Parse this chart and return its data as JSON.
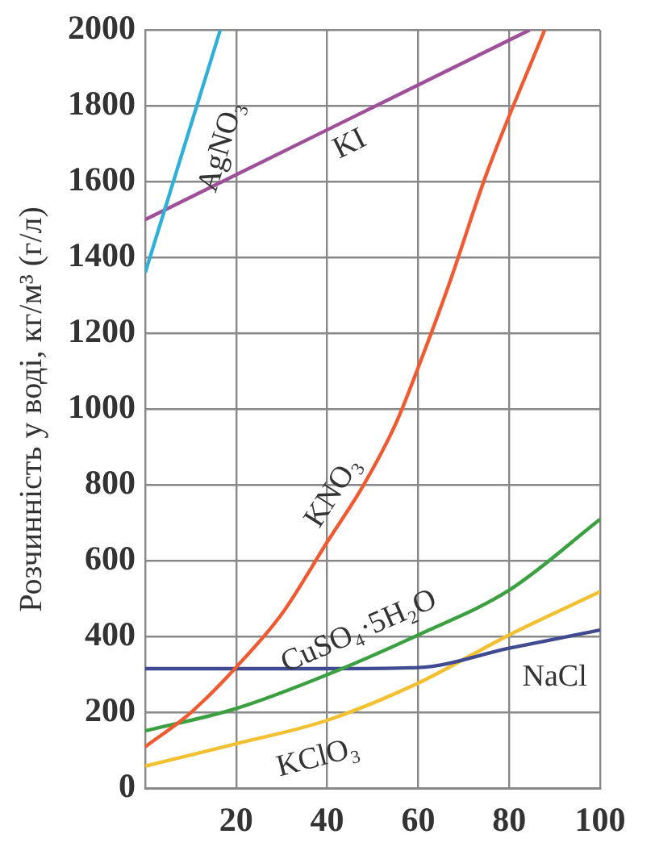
{
  "chart_data": {
    "type": "line",
    "ylabel": "Розчинність у воді, кг/м³ (г/л)",
    "xlim": [
      0,
      100
    ],
    "xticks": [
      {
        "value": 0,
        "label": null
      },
      20,
      40,
      60,
      80,
      100
    ],
    "ylim": [
      0,
      2000
    ],
    "yticks": [
      0,
      200,
      400,
      600,
      800,
      1000,
      1200,
      1400,
      1600,
      1800,
      2000
    ],
    "grid": true,
    "legend": false,
    "marker": "none",
    "line_style": "solid",
    "series": [
      {
        "name": "AgNO₃",
        "color": "#2fb0d8",
        "x": [
          0,
          16.5
        ],
        "values": [
          1360,
          2000
        ]
      },
      {
        "name": "KI",
        "color": "#a0509a",
        "x": [
          0,
          84.5
        ],
        "values": [
          1500,
          2000
        ]
      },
      {
        "name": "KNO₃",
        "color": "#f05a30",
        "x": [
          0,
          10,
          20,
          30,
          40,
          48,
          55,
          60,
          66.8,
          75,
          87.8
        ],
        "values": [
          110,
          200,
          320,
          460,
          650,
          800,
          960,
          1110,
          1330,
          1620,
          2000
        ]
      },
      {
        "name": "CuSO₄·5H₂O",
        "color": "#3aa040",
        "x": [
          0,
          20,
          40,
          60,
          80,
          100
        ],
        "values": [
          152,
          211,
          300,
          405,
          523,
          710
        ]
      },
      {
        "name": "NaCl",
        "color": "#404a90",
        "x": [
          0,
          40,
          60,
          80,
          100
        ],
        "values": [
          316,
          316,
          319,
          370,
          418
        ]
      },
      {
        "name": "KClO₃",
        "color": "#f2c030",
        "x": [
          0,
          20,
          40,
          60,
          80,
          100
        ],
        "values": [
          59,
          118,
          180,
          278,
          405,
          519
        ]
      }
    ]
  }
}
